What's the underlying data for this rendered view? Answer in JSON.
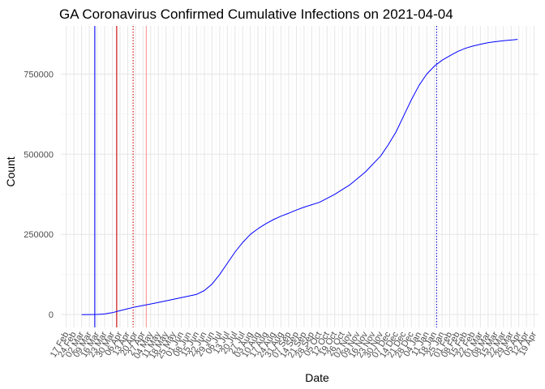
{
  "chart_data": {
    "type": "line",
    "title": "GA Coronavirus Confirmed Cumulative Infections on 2021-04-04",
    "xlabel": "Date",
    "ylabel": "Count",
    "x_range": [
      "2020-02-12",
      "2021-04-23"
    ],
    "ylim": [
      -40000,
      900000
    ],
    "y_ticks": [
      0,
      250000,
      500000,
      750000
    ],
    "y_tick_labels": [
      "0",
      "250000",
      "500000",
      "750000"
    ],
    "x_tick_dates": [
      "2020-02-17",
      "2020-02-24",
      "2020-03-02",
      "2020-03-09",
      "2020-03-16",
      "2020-03-23",
      "2020-03-30",
      "2020-04-06",
      "2020-04-13",
      "2020-04-20",
      "2020-04-27",
      "2020-05-04",
      "2020-05-11",
      "2020-05-18",
      "2020-05-25",
      "2020-06-01",
      "2020-06-08",
      "2020-06-15",
      "2020-06-22",
      "2020-06-29",
      "2020-07-06",
      "2020-07-13",
      "2020-07-20",
      "2020-07-27",
      "2020-08-03",
      "2020-08-10",
      "2020-08-17",
      "2020-08-24",
      "2020-08-31",
      "2020-09-07",
      "2020-09-14",
      "2020-09-21",
      "2020-09-28",
      "2020-10-05",
      "2020-10-12",
      "2020-10-19",
      "2020-10-26",
      "2020-11-02",
      "2020-11-09",
      "2020-11-16",
      "2020-11-23",
      "2020-11-30",
      "2020-12-07",
      "2020-12-14",
      "2020-12-21",
      "2020-12-28",
      "2021-01-04",
      "2021-01-11",
      "2021-01-18",
      "2021-01-25",
      "2021-02-01",
      "2021-02-08",
      "2021-02-15",
      "2021-02-22",
      "2021-03-01",
      "2021-03-08",
      "2021-03-15",
      "2021-03-22",
      "2021-03-29",
      "2021-04-05",
      "2021-04-12",
      "2021-04-19"
    ],
    "x_tick_labels": [
      "17 Feb",
      "24 Feb",
      "02 Mar",
      "09 Mar",
      "16 Mar",
      "23 Mar",
      "30 Mar",
      "06 Apr",
      "13 Apr",
      "20 Apr",
      "27 Apr",
      "04 May",
      "11 May",
      "18 May",
      "25 May",
      "01 Jun",
      "08 Jun",
      "15 Jun",
      "22 Jun",
      "29 Jun",
      "06 Jul",
      "13 Jul",
      "20 Jul",
      "27 Jul",
      "03 Aug",
      "10 Aug",
      "17 Aug",
      "24 Aug",
      "31 Aug",
      "07 Sep",
      "14 Sep",
      "21 Sep",
      "28 Sep",
      "05 Oct",
      "12 Oct",
      "19 Oct",
      "26 Oct",
      "02 Nov",
      "09 Nov",
      "16 Nov",
      "23 Nov",
      "30 Nov",
      "07 Dec",
      "14 Dec",
      "21 Dec",
      "28 Dec",
      "04 Jan",
      "11 Jan",
      "18 Jan",
      "25 Jan",
      "01 Feb",
      "08 Feb",
      "15 Feb",
      "22 Feb",
      "01 Mar",
      "08 Mar",
      "15 Mar",
      "22 Mar",
      "29 Mar",
      "05 Apr",
      "12 Apr",
      "19 Apr"
    ],
    "grid": true,
    "series": [
      {
        "color": "#0000ff",
        "x": [
          "2020-03-02",
          "2020-03-16",
          "2020-03-23",
          "2020-03-30",
          "2020-04-06",
          "2020-04-13",
          "2020-04-20",
          "2020-05-04",
          "2020-05-18",
          "2020-06-01",
          "2020-06-15",
          "2020-06-22",
          "2020-06-29",
          "2020-07-06",
          "2020-07-13",
          "2020-07-20",
          "2020-07-27",
          "2020-08-03",
          "2020-08-10",
          "2020-08-17",
          "2020-08-24",
          "2020-08-31",
          "2020-09-07",
          "2020-09-14",
          "2020-09-21",
          "2020-10-05",
          "2020-10-19",
          "2020-11-02",
          "2020-11-16",
          "2020-11-30",
          "2020-12-07",
          "2020-12-14",
          "2020-12-21",
          "2020-12-28",
          "2021-01-04",
          "2021-01-11",
          "2021-01-18",
          "2021-01-25",
          "2021-02-01",
          "2021-02-08",
          "2021-02-15",
          "2021-02-22",
          "2021-03-01",
          "2021-03-08",
          "2021-03-15",
          "2021-03-22",
          "2021-03-29",
          "2021-04-04"
        ],
        "y": [
          0,
          500,
          2000,
          6000,
          12000,
          18000,
          24000,
          33000,
          43000,
          53000,
          63000,
          75000,
          95000,
          125000,
          160000,
          195000,
          225000,
          250000,
          268000,
          283000,
          296000,
          307000,
          316000,
          326000,
          335000,
          350000,
          375000,
          405000,
          445000,
          495000,
          530000,
          570000,
          620000,
          670000,
          715000,
          750000,
          775000,
          793000,
          807000,
          820000,
          830000,
          837000,
          843000,
          848000,
          851000,
          854000,
          856000,
          858000
        ]
      }
    ],
    "vertical_lines": [
      {
        "x": "2020-03-14",
        "color": "#0000ff",
        "style": "solid"
      },
      {
        "x": "2020-04-03",
        "color": "#cc0000",
        "style": "solid"
      },
      {
        "x": "2020-04-18",
        "color": "#cc0000",
        "style": "dotted"
      },
      {
        "x": "2020-04-30",
        "color": "#ff9999",
        "style": "solid"
      },
      {
        "x": "2021-01-20",
        "color": "#0000cc",
        "style": "dotted"
      }
    ]
  }
}
